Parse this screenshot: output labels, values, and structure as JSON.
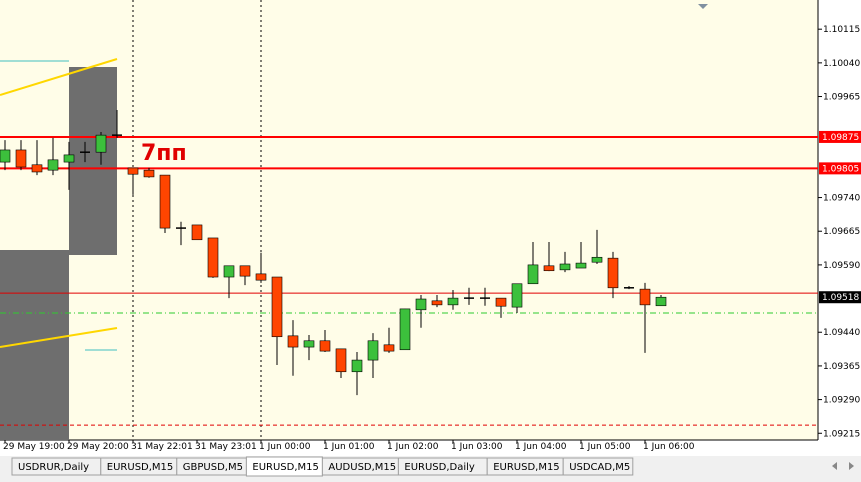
{
  "chart_data": {
    "type": "candlestick",
    "categories": [
      "29 May 19:00",
      null,
      null,
      null,
      "29 May 20:00",
      null,
      null,
      null,
      "31 May 22:01",
      null,
      null,
      null,
      "31 May 23:01",
      null,
      null,
      null,
      "1 Jun 00:00",
      null,
      null,
      null,
      "1 Jun 01:00",
      null,
      null,
      null,
      "1 Jun 02:00",
      null,
      null,
      null,
      "1 Jun 03:00",
      null,
      null,
      null,
      "1 Jun 04:00",
      null,
      null,
      null,
      "1 Jun 05:00",
      null,
      null,
      null,
      "1 Jun 06:00",
      null
    ],
    "open": [
      1.09819,
      1.09846,
      1.09813,
      1.09801,
      1.09819,
      1.09841,
      1.09841,
      1.09879,
      1.09806,
      1.09801,
      1.0979,
      1.09672,
      1.09679,
      1.0965,
      1.09563,
      1.09588,
      1.0957,
      1.09563,
      1.09432,
      1.09407,
      1.09421,
      1.09403,
      1.09352,
      1.09378,
      1.09412,
      1.09401,
      1.0949,
      1.0951,
      1.09501,
      1.09516,
      1.09516,
      1.09516,
      1.09496,
      1.09548,
      1.09588,
      1.09579,
      1.09583,
      1.09596,
      1.09605,
      1.09539,
      1.09536,
      1.09499
    ],
    "high": [
      1.09868,
      1.09868,
      1.09868,
      1.09873,
      1.09864,
      1.09864,
      1.09886,
      1.09935,
      1.09806,
      1.09806,
      1.0979,
      1.09686,
      1.09679,
      1.0965,
      1.09588,
      1.09588,
      1.09617,
      1.09563,
      1.09467,
      1.09434,
      1.09445,
      1.09403,
      1.09396,
      1.09438,
      1.0945,
      1.09492,
      1.09523,
      1.09523,
      1.09534,
      1.09539,
      1.09539,
      1.09516,
      1.09548,
      1.09641,
      1.09641,
      1.09619,
      1.09641,
      1.09668,
      1.09619,
      1.09543,
      1.0955,
      1.09523
    ],
    "low": [
      1.09801,
      1.09801,
      1.0979,
      1.0979,
      1.09757,
      1.09819,
      1.09813,
      1.09873,
      1.09746,
      1.09784,
      1.09661,
      1.09634,
      1.09646,
      1.09561,
      1.09516,
      1.09545,
      1.0955,
      1.09367,
      1.09343,
      1.09378,
      1.09396,
      1.09338,
      1.093,
      1.09338,
      1.09394,
      1.09401,
      1.0945,
      1.09496,
      1.0949,
      1.09501,
      1.09499,
      1.09472,
      1.09483,
      1.09548,
      1.09576,
      1.09574,
      1.09583,
      1.09592,
      1.09516,
      1.09536,
      1.09394,
      1.09499
    ],
    "close": [
      1.09846,
      1.09808,
      1.09797,
      1.09824,
      1.09835,
      1.09841,
      1.09879,
      1.09879,
      1.09792,
      1.09786,
      1.09672,
      1.09672,
      1.09646,
      1.09563,
      1.09588,
      1.09565,
      1.09556,
      1.0943,
      1.09407,
      1.09421,
      1.09398,
      1.09352,
      1.09378,
      1.09421,
      1.09398,
      1.09492,
      1.09514,
      1.09501,
      1.09516,
      1.09516,
      1.09516,
      1.09498,
      1.09548,
      1.0959,
      1.09577,
      1.09592,
      1.09594,
      1.09607,
      1.09539,
      1.09539,
      1.09501,
      1.09518
    ],
    "up_color": "#3cc03c",
    "down_color": "#ff4500",
    "ylim": [
      1.092,
      1.1018
    ],
    "yticks": [
      1.10115,
      {
        "value": 1.1004,
        "label": "1.10040"
      },
      1.09965,
      {
        "value": 1.0974,
        "label": "1.09740"
      },
      1.09665,
      {
        "value": 1.0959,
        "label": "1.09590"
      },
      {
        "value": 1.0944,
        "label": "1.09440"
      },
      1.09365,
      {
        "value": 1.0929,
        "label": "1.09290"
      },
      1.09215
    ],
    "levels": [
      {
        "value": 1.09875,
        "color": "#ff0000",
        "style": "solid",
        "width": 2,
        "tag": true
      },
      {
        "value": 1.09805,
        "color": "#ff0000",
        "style": "solid",
        "width": 2,
        "tag": true
      },
      {
        "value": 1.09527,
        "color": "#e00000",
        "style": "solid",
        "width": 1,
        "tag": false
      },
      {
        "value": 1.09518,
        "color": "#000000",
        "style": "none",
        "width": 1,
        "tag": true
      },
      {
        "value": 1.09483,
        "color": "#2ecc2e",
        "style": "dashdot",
        "width": 1,
        "tag": false
      },
      {
        "value": 1.09233,
        "color": "#e00000",
        "style": "dashed",
        "width": 1,
        "tag": false
      }
    ],
    "annotation": "7пп"
  },
  "tabs": {
    "items": [
      "USDRUR,Daily",
      "EURUSD,M15",
      "GBPUSD,M5",
      "EURUSD,M15",
      "AUDUSD,M15",
      "EURUSD,Daily",
      "EURUSD,M15",
      "USDCAD,M5"
    ],
    "active": 3
  }
}
